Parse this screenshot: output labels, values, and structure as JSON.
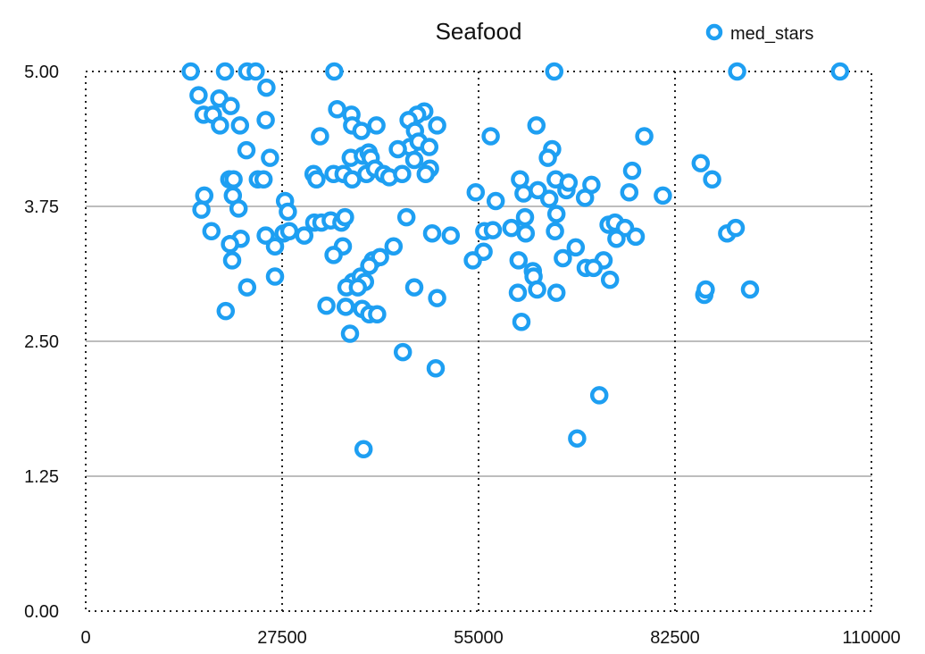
{
  "chart_data": {
    "type": "scatter",
    "title": "Seafood",
    "xlabel": "",
    "ylabel": "",
    "xlim": [
      0,
      110000
    ],
    "ylim": [
      0,
      5
    ],
    "x_ticks": [
      "0",
      "27500",
      "55000",
      "82500",
      "110000"
    ],
    "y_ticks": [
      "0.00",
      "1.25",
      "2.50",
      "3.75",
      "5.00"
    ],
    "legend_position": "top-right",
    "grid": {
      "horizontal": true,
      "vertical": "dotted"
    },
    "color": "#1e9ff2",
    "series": [
      {
        "name": "med_stars",
        "points": [
          [
            14700,
            5.0
          ],
          [
            19500,
            5.0
          ],
          [
            22600,
            5.0
          ],
          [
            23800,
            5.0
          ],
          [
            34800,
            5.0
          ],
          [
            65600,
            5.0
          ],
          [
            91200,
            5.0
          ],
          [
            105600,
            5.0
          ],
          [
            15800,
            4.78
          ],
          [
            18700,
            4.75
          ],
          [
            25300,
            4.85
          ],
          [
            20300,
            4.68
          ],
          [
            16500,
            4.6
          ],
          [
            17800,
            4.6
          ],
          [
            18800,
            4.5
          ],
          [
            21600,
            4.5
          ],
          [
            25200,
            4.55
          ],
          [
            35200,
            4.65
          ],
          [
            37200,
            4.6
          ],
          [
            37300,
            4.5
          ],
          [
            47400,
            4.63
          ],
          [
            46400,
            4.6
          ],
          [
            45200,
            4.55
          ],
          [
            46100,
            4.45
          ],
          [
            49200,
            4.5
          ],
          [
            63100,
            4.5
          ],
          [
            32800,
            4.4
          ],
          [
            38600,
            4.45
          ],
          [
            40700,
            4.5
          ],
          [
            45400,
            4.3
          ],
          [
            46600,
            4.35
          ],
          [
            48100,
            4.3
          ],
          [
            56700,
            4.4
          ],
          [
            78200,
            4.4
          ],
          [
            22500,
            4.27
          ],
          [
            25800,
            4.2
          ],
          [
            37100,
            4.2
          ],
          [
            38800,
            4.22
          ],
          [
            39600,
            4.25
          ],
          [
            39900,
            4.2
          ],
          [
            43700,
            4.28
          ],
          [
            65300,
            4.28
          ],
          [
            46000,
            4.18
          ],
          [
            48200,
            4.1
          ],
          [
            64700,
            4.2
          ],
          [
            86100,
            4.15
          ],
          [
            20100,
            4.0
          ],
          [
            20700,
            4.0
          ],
          [
            24100,
            4.0
          ],
          [
            24900,
            4.0
          ],
          [
            31900,
            4.05
          ],
          [
            32300,
            4.0
          ],
          [
            34700,
            4.05
          ],
          [
            36100,
            4.05
          ],
          [
            37300,
            4.0
          ],
          [
            39300,
            4.05
          ],
          [
            40500,
            4.1
          ],
          [
            41700,
            4.05
          ],
          [
            42500,
            4.02
          ],
          [
            44300,
            4.05
          ],
          [
            47600,
            4.05
          ],
          [
            60800,
            4.0
          ],
          [
            65800,
            4.0
          ],
          [
            67300,
            3.9
          ],
          [
            67600,
            3.97
          ],
          [
            70800,
            3.95
          ],
          [
            76500,
            4.08
          ],
          [
            87700,
            4.0
          ],
          [
            16600,
            3.85
          ],
          [
            20600,
            3.85
          ],
          [
            27900,
            3.8
          ],
          [
            54600,
            3.88
          ],
          [
            57400,
            3.8
          ],
          [
            61300,
            3.87
          ],
          [
            63300,
            3.9
          ],
          [
            64900,
            3.82
          ],
          [
            69900,
            3.83
          ],
          [
            76100,
            3.88
          ],
          [
            80800,
            3.85
          ],
          [
            16200,
            3.72
          ],
          [
            21400,
            3.73
          ],
          [
            28300,
            3.7
          ],
          [
            32000,
            3.6
          ],
          [
            33000,
            3.6
          ],
          [
            34300,
            3.62
          ],
          [
            35800,
            3.6
          ],
          [
            36300,
            3.65
          ],
          [
            44900,
            3.65
          ],
          [
            61500,
            3.65
          ],
          [
            65900,
            3.68
          ],
          [
            17600,
            3.52
          ],
          [
            27700,
            3.5
          ],
          [
            28500,
            3.52
          ],
          [
            30600,
            3.48
          ],
          [
            48500,
            3.5
          ],
          [
            51100,
            3.48
          ],
          [
            55800,
            3.52
          ],
          [
            57000,
            3.53
          ],
          [
            59600,
            3.55
          ],
          [
            61600,
            3.5
          ],
          [
            65700,
            3.52
          ],
          [
            73200,
            3.58
          ],
          [
            74100,
            3.6
          ],
          [
            75500,
            3.55
          ],
          [
            74300,
            3.45
          ],
          [
            77000,
            3.47
          ],
          [
            89800,
            3.5
          ],
          [
            91000,
            3.55
          ],
          [
            25200,
            3.48
          ],
          [
            21700,
            3.45
          ],
          [
            20200,
            3.4
          ],
          [
            26500,
            3.38
          ],
          [
            36000,
            3.38
          ],
          [
            43100,
            3.38
          ],
          [
            55700,
            3.33
          ],
          [
            68600,
            3.37
          ],
          [
            66800,
            3.27
          ],
          [
            72500,
            3.25
          ],
          [
            20500,
            3.25
          ],
          [
            34700,
            3.3
          ],
          [
            40200,
            3.25
          ],
          [
            41200,
            3.28
          ],
          [
            54200,
            3.25
          ],
          [
            60600,
            3.25
          ],
          [
            70000,
            3.18
          ],
          [
            71100,
            3.18
          ],
          [
            62600,
            3.15
          ],
          [
            62700,
            3.1
          ],
          [
            26500,
            3.1
          ],
          [
            37400,
            3.05
          ],
          [
            38500,
            3.1
          ],
          [
            39100,
            3.05
          ],
          [
            39700,
            3.2
          ],
          [
            73400,
            3.07
          ],
          [
            22600,
            3.0
          ],
          [
            36500,
            3.0
          ],
          [
            38100,
            3.0
          ],
          [
            46000,
            3.0
          ],
          [
            60500,
            2.95
          ],
          [
            63200,
            2.98
          ],
          [
            65900,
            2.95
          ],
          [
            86600,
            2.93
          ],
          [
            86800,
            2.98
          ],
          [
            93000,
            2.98
          ],
          [
            49200,
            2.9
          ],
          [
            33700,
            2.83
          ],
          [
            36400,
            2.82
          ],
          [
            38700,
            2.8
          ],
          [
            39700,
            2.75
          ],
          [
            40800,
            2.75
          ],
          [
            19600,
            2.78
          ],
          [
            61000,
            2.68
          ],
          [
            37000,
            2.57
          ],
          [
            44400,
            2.4
          ],
          [
            49000,
            2.25
          ],
          [
            71900,
            2.0
          ],
          [
            68800,
            1.6
          ],
          [
            38900,
            1.5
          ]
        ]
      }
    ]
  }
}
